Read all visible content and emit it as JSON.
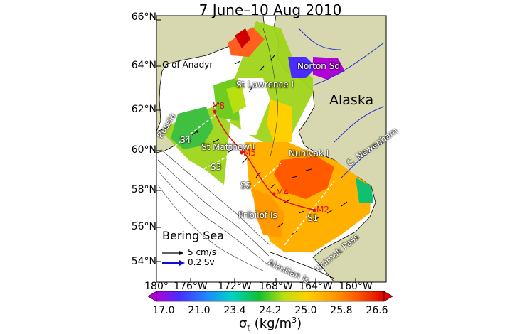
{
  "title": "7 June–10 Aug 2010",
  "lat_labels": [
    "66°N",
    "64°N",
    "62°N",
    "60°N",
    "58°N",
    "56°N",
    "54°N"
  ],
  "lon_labels": [
    "180°",
    "176°W",
    "172°W",
    "168°W",
    "164°W",
    "160°W"
  ],
  "colorbar": {
    "ticks": [
      "17.0",
      "21.0",
      "23.4",
      "24.2",
      "25.0",
      "25.8",
      "26.6"
    ],
    "title_symbol": "σ",
    "title_sub": "t",
    "title_units": " (kg/m",
    "title_sup": "3",
    "title_close": ")"
  },
  "places": {
    "anadyr": "G of Anadyr",
    "norton": "Norton Sd",
    "st_lawrence": "St Lawrence I",
    "alaska": "Alaska",
    "russia": "Russia",
    "st_matthew": "St Matthew I",
    "nunivak": "Nunivak I",
    "nevenham": "C. Newenham",
    "pribilof": "Pribilof Is",
    "unimak": "Unimak Pass",
    "aleutian": "Aleutian Is.",
    "bering_sea": "Bering Sea"
  },
  "moorings": [
    "M8",
    "M5",
    "M4",
    "M2"
  ],
  "sections": [
    "S1",
    "S2",
    "S3",
    "S4"
  ],
  "legend": {
    "speed_label": "5 cm/s",
    "transport_label": "0.2 Sv",
    "speed_color": "#000000",
    "transport_color": "#1010d0"
  },
  "colors": {
    "land": "#d8d8b0",
    "river": "#2030d0",
    "mooring_line": "#e01010",
    "section_line": "#ffffff"
  }
}
